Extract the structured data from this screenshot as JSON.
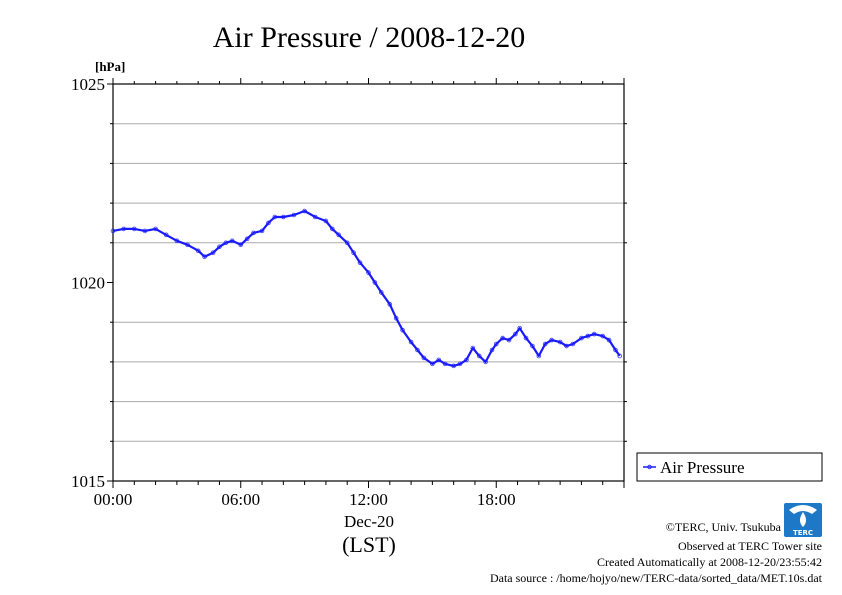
{
  "chart_data": {
    "type": "line",
    "title": "Air Pressure / 2008-12-20",
    "ylabel": "[hPa]",
    "xlabel": "(LST)",
    "date_label": "Dec-20",
    "ylim": [
      1015,
      1025
    ],
    "xlim": [
      0,
      24
    ],
    "y_ticks": [
      1015,
      1020,
      1025
    ],
    "y_tick_labels": [
      "1015",
      "1020",
      "1025"
    ],
    "y_minor_gridlines": [
      1016,
      1017,
      1018,
      1019,
      1021,
      1022,
      1023,
      1024
    ],
    "x_ticks": [
      0,
      6,
      12,
      18
    ],
    "x_tick_labels": [
      "00:00",
      "06:00",
      "12:00",
      "18:00"
    ],
    "grid": "horizontal",
    "legend_position": "right-bottom",
    "series": [
      {
        "name": "Air Pressure",
        "color": "#1a1aff",
        "points": [
          [
            0.0,
            1021.3
          ],
          [
            0.5,
            1021.35
          ],
          [
            1.0,
            1021.35
          ],
          [
            1.5,
            1021.3
          ],
          [
            2.0,
            1021.35
          ],
          [
            2.5,
            1021.2
          ],
          [
            3.0,
            1021.05
          ],
          [
            3.5,
            1020.95
          ],
          [
            4.0,
            1020.8
          ],
          [
            4.3,
            1020.65
          ],
          [
            4.7,
            1020.75
          ],
          [
            5.0,
            1020.9
          ],
          [
            5.3,
            1021.0
          ],
          [
            5.6,
            1021.05
          ],
          [
            6.0,
            1020.95
          ],
          [
            6.3,
            1021.1
          ],
          [
            6.6,
            1021.25
          ],
          [
            7.0,
            1021.3
          ],
          [
            7.3,
            1021.5
          ],
          [
            7.6,
            1021.65
          ],
          [
            8.0,
            1021.65
          ],
          [
            8.5,
            1021.7
          ],
          [
            9.0,
            1021.8
          ],
          [
            9.5,
            1021.65
          ],
          [
            10.0,
            1021.55
          ],
          [
            10.3,
            1021.35
          ],
          [
            10.6,
            1021.2
          ],
          [
            11.0,
            1021.0
          ],
          [
            11.3,
            1020.75
          ],
          [
            11.6,
            1020.5
          ],
          [
            12.0,
            1020.25
          ],
          [
            12.3,
            1020.0
          ],
          [
            12.6,
            1019.75
          ],
          [
            13.0,
            1019.45
          ],
          [
            13.3,
            1019.1
          ],
          [
            13.6,
            1018.8
          ],
          [
            14.0,
            1018.5
          ],
          [
            14.3,
            1018.3
          ],
          [
            14.6,
            1018.1
          ],
          [
            15.0,
            1017.95
          ],
          [
            15.3,
            1018.05
          ],
          [
            15.6,
            1017.95
          ],
          [
            16.0,
            1017.9
          ],
          [
            16.3,
            1017.95
          ],
          [
            16.6,
            1018.05
          ],
          [
            16.9,
            1018.35
          ],
          [
            17.2,
            1018.15
          ],
          [
            17.5,
            1018.0
          ],
          [
            17.8,
            1018.3
          ],
          [
            18.0,
            1018.45
          ],
          [
            18.3,
            1018.6
          ],
          [
            18.6,
            1018.55
          ],
          [
            18.9,
            1018.7
          ],
          [
            19.1,
            1018.85
          ],
          [
            19.4,
            1018.6
          ],
          [
            19.7,
            1018.4
          ],
          [
            20.0,
            1018.15
          ],
          [
            20.3,
            1018.45
          ],
          [
            20.6,
            1018.55
          ],
          [
            21.0,
            1018.5
          ],
          [
            21.3,
            1018.4
          ],
          [
            21.6,
            1018.45
          ],
          [
            22.0,
            1018.6
          ],
          [
            22.3,
            1018.65
          ],
          [
            22.6,
            1018.7
          ],
          [
            23.0,
            1018.65
          ],
          [
            23.3,
            1018.55
          ],
          [
            23.6,
            1018.3
          ],
          [
            23.8,
            1018.15
          ]
        ]
      }
    ]
  },
  "credits": {
    "copyright": "©TERC, Univ. Tsukuba",
    "observed": "Observed at TERC Tower site",
    "created": "Created Automatically at 2008-12-20/23:55:42",
    "source": "Data source : /home/hojyo/new/TERC-data/sorted_data/MET.10s.dat",
    "logo_text": "TERC"
  }
}
